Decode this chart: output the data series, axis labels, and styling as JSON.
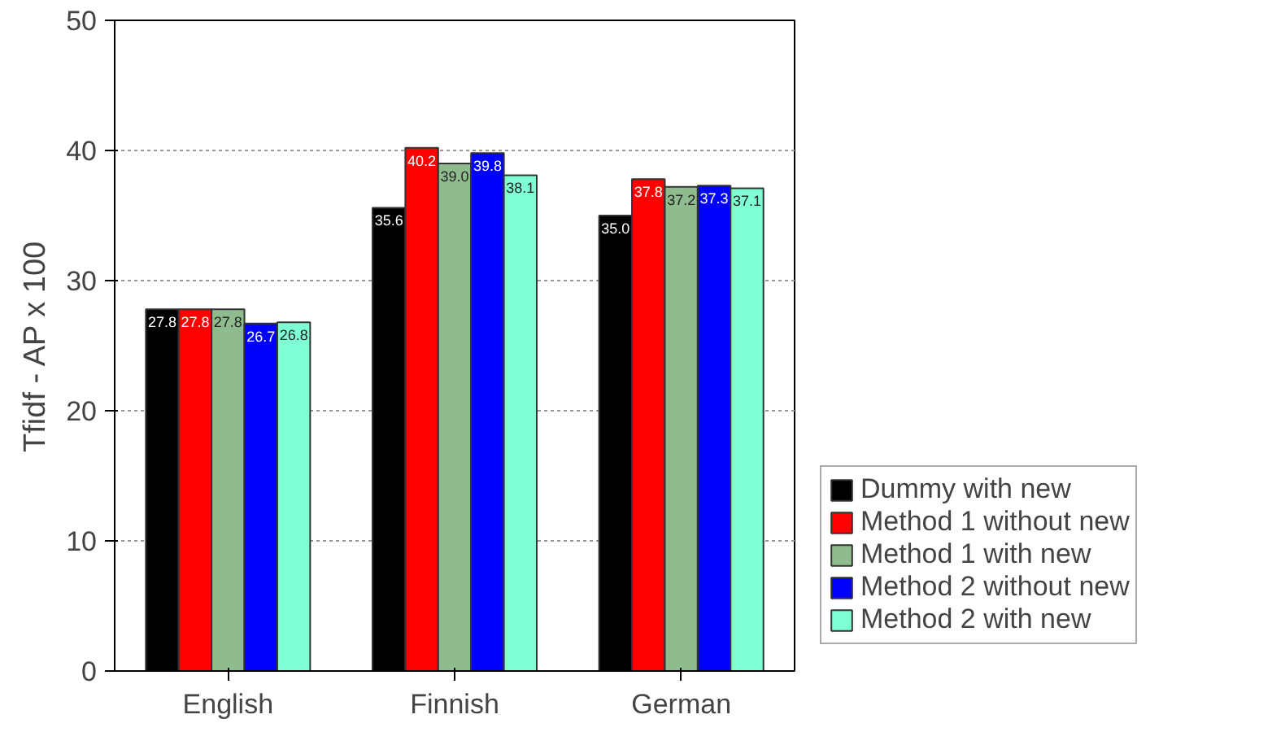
{
  "chart_data": {
    "type": "bar",
    "ylabel": "Tfidf - AP x 100",
    "categories": [
      "English",
      "Finnish",
      "German"
    ],
    "series": [
      {
        "name": "Dummy with new",
        "color": "#000000",
        "values": [
          27.8,
          35.6,
          35.0
        ],
        "value_labels": [
          "27.8",
          "35.6",
          "35.0"
        ]
      },
      {
        "name": "Method 1 without new",
        "color": "#ff0000",
        "values": [
          27.8,
          40.2,
          37.8
        ],
        "value_labels": [
          "27.8",
          "40.2",
          "37.8"
        ]
      },
      {
        "name": "Method 1 with new",
        "color": "#8fbc8f",
        "values": [
          27.8,
          39.0,
          37.2
        ],
        "value_labels": [
          "27.8",
          "39.0",
          "37.2"
        ]
      },
      {
        "name": "Method 2 without new",
        "color": "#0000ff",
        "values": [
          26.7,
          39.8,
          37.3
        ],
        "value_labels": [
          "26.7",
          "39.8",
          "37.3"
        ]
      },
      {
        "name": "Method 2 with new",
        "color": "#7fffd4",
        "values": [
          26.8,
          38.1,
          37.1
        ],
        "value_labels": [
          "26.8",
          "38.1",
          "37.1"
        ]
      }
    ],
    "ylim": [
      0,
      50
    ],
    "yticks": [
      0,
      10,
      20,
      30,
      40,
      50
    ],
    "grid": "y",
    "legend": "bottom right"
  }
}
